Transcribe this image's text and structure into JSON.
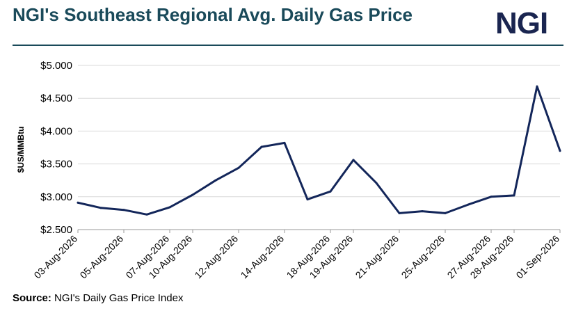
{
  "header": {
    "title": "NGI's Southeast Regional Avg. Daily Gas Price",
    "logo": "NGI"
  },
  "footer": {
    "source_label": "Source:",
    "source_text": " NGI's Daily Gas Price Index"
  },
  "chart_data": {
    "type": "line",
    "title": "NGI's Southeast Regional Avg. Daily Gas Price",
    "xlabel": "",
    "ylabel": "$US/MMBtu",
    "ylim": [
      2.5,
      5.0
    ],
    "y_ticks": [
      "$2.500",
      "$3.000",
      "$3.500",
      "$4.000",
      "$4.500",
      "$5.000"
    ],
    "y_tick_values": [
      2.5,
      3.0,
      3.5,
      4.0,
      4.5,
      5.0
    ],
    "grid": true,
    "legend": "none",
    "line_color": "#13265a",
    "x": [
      "03-Aug-2026",
      "04-Aug-2026",
      "05-Aug-2026",
      "06-Aug-2026",
      "07-Aug-2026",
      "10-Aug-2026",
      "11-Aug-2026",
      "12-Aug-2026",
      "13-Aug-2026",
      "14-Aug-2026",
      "17-Aug-2026",
      "18-Aug-2026",
      "19-Aug-2026",
      "20-Aug-2026",
      "21-Aug-2026",
      "24-Aug-2026",
      "25-Aug-2026",
      "26-Aug-2026",
      "27-Aug-2026",
      "28-Aug-2026",
      "31-Aug-2026",
      "01-Sep-2026"
    ],
    "x_tick_labels": [
      "03-Aug-2026",
      "",
      "05-Aug-2026",
      "",
      "07-Aug-2026",
      "10-Aug-2026",
      "",
      "12-Aug-2026",
      "",
      "14-Aug-2026",
      "",
      "18-Aug-2026",
      "19-Aug-2026",
      "",
      "21-Aug-2026",
      "",
      "25-Aug-2026",
      "",
      "27-Aug-2026",
      "28-Aug-2026",
      "",
      "01-Sep-2026"
    ],
    "values": [
      2.91,
      2.83,
      2.8,
      2.73,
      2.84,
      3.03,
      3.25,
      3.44,
      3.76,
      3.82,
      2.96,
      3.08,
      3.56,
      3.21,
      2.75,
      2.78,
      2.75,
      2.88,
      3.0,
      3.02,
      4.68,
      3.7
    ]
  }
}
